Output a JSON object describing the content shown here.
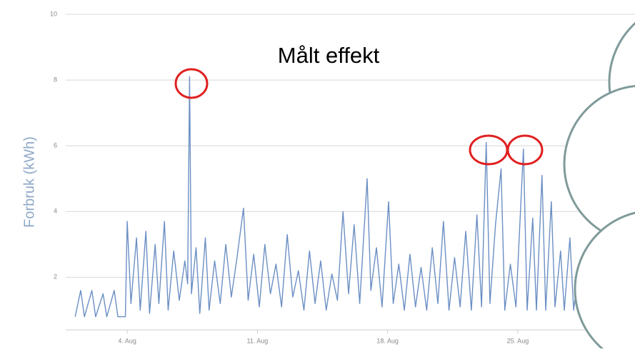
{
  "chart_data": {
    "type": "line",
    "title": "Målt effekt",
    "y_label": "Forbruk (kWh)",
    "xlim": [
      1,
      31.3
    ],
    "ylim": [
      0.4,
      10
    ],
    "xticks": [
      {
        "value": 4,
        "label": "4. Aug"
      },
      {
        "value": 11,
        "label": "11. Aug"
      },
      {
        "value": 18,
        "label": "18. Aug"
      },
      {
        "value": 25,
        "label": "25. Aug"
      }
    ],
    "yticks": [
      2,
      4,
      6,
      8,
      10
    ],
    "grid": true,
    "series": [
      {
        "name": "Forbruk",
        "color": "#6b8fc4",
        "x": [
          1.2,
          1.5,
          1.7,
          2.1,
          2.3,
          2.7,
          2.9,
          3.3,
          3.5,
          3.9,
          4.0,
          4.2,
          4.5,
          4.7,
          5.0,
          5.2,
          5.5,
          5.7,
          6.0,
          6.2,
          6.5,
          6.8,
          7.1,
          7.25,
          7.35,
          7.45,
          7.7,
          7.9,
          8.2,
          8.4,
          8.7,
          9.0,
          9.3,
          9.6,
          9.9,
          10.25,
          10.5,
          10.8,
          11.1,
          11.4,
          11.7,
          12.0,
          12.3,
          12.6,
          12.9,
          13.2,
          13.5,
          13.8,
          14.1,
          14.4,
          14.7,
          15.0,
          15.3,
          15.6,
          15.9,
          16.2,
          16.5,
          16.9,
          17.1,
          17.4,
          17.7,
          18.05,
          18.3,
          18.6,
          18.9,
          19.2,
          19.5,
          19.8,
          20.1,
          20.4,
          20.7,
          21.0,
          21.3,
          21.6,
          21.9,
          22.2,
          22.5,
          22.8,
          23.05,
          23.3,
          23.5,
          23.8,
          24.1,
          24.3,
          24.6,
          24.9,
          25.3,
          25.5,
          25.8,
          26.0,
          26.3,
          26.5,
          26.8,
          27.0,
          27.3,
          27.5,
          27.8,
          28.0,
          28.3,
          28.6
        ],
        "values": [
          0.8,
          1.6,
          0.8,
          1.6,
          0.8,
          1.5,
          0.8,
          1.6,
          0.8,
          0.8,
          3.7,
          1.2,
          3.2,
          1.0,
          3.4,
          0.9,
          3.0,
          1.2,
          3.7,
          1.0,
          2.8,
          1.3,
          2.5,
          1.8,
          8.1,
          1.5,
          2.9,
          0.9,
          3.2,
          1.0,
          2.5,
          1.2,
          3.0,
          1.4,
          2.6,
          4.1,
          1.3,
          2.7,
          1.1,
          3.0,
          1.5,
          2.4,
          1.1,
          3.3,
          1.4,
          2.2,
          1.0,
          2.8,
          1.2,
          2.5,
          1.0,
          2.1,
          1.3,
          4.0,
          1.5,
          3.6,
          1.2,
          5.0,
          1.6,
          2.9,
          1.1,
          4.3,
          1.2,
          2.4,
          1.0,
          2.7,
          1.1,
          2.3,
          1.0,
          2.9,
          1.2,
          3.7,
          1.0,
          2.6,
          1.1,
          3.4,
          1.0,
          3.9,
          1.1,
          6.1,
          1.2,
          3.6,
          5.3,
          1.0,
          2.4,
          1.1,
          5.9,
          1.0,
          3.8,
          1.0,
          5.1,
          1.0,
          4.3,
          1.1,
          2.8,
          1.0,
          3.2,
          1.0,
          2.4,
          1.0
        ]
      }
    ]
  }
}
